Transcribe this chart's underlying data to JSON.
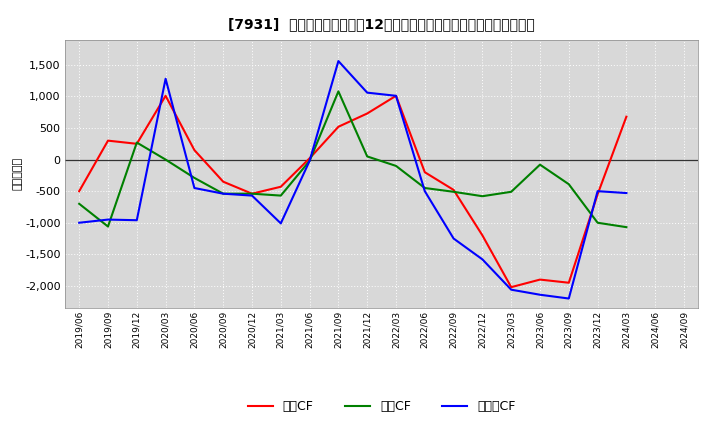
{
  "title": "[7931]  キャッシュフローの12か月移動合計の対前年同期増減額の推移",
  "ylabel": "（百万円）",
  "background_color": "#ffffff",
  "plot_bg_color": "#d8d8d8",
  "grid_color": "#ffffff",
  "ylim": [
    -2350,
    1900
  ],
  "yticks": [
    -2000,
    -1500,
    -1000,
    -500,
    0,
    500,
    1000,
    1500
  ],
  "x_labels": [
    "2019/06",
    "2019/09",
    "2019/12",
    "2020/03",
    "2020/06",
    "2020/09",
    "2020/12",
    "2021/03",
    "2021/06",
    "2021/09",
    "2021/12",
    "2022/03",
    "2022/06",
    "2022/09",
    "2022/12",
    "2023/03",
    "2023/06",
    "2023/09",
    "2023/12",
    "2024/03",
    "2024/06",
    "2024/09"
  ],
  "operating_cf": [
    -500,
    300,
    250,
    1010,
    150,
    -350,
    -540,
    -430,
    20,
    520,
    730,
    1010,
    -200,
    -480,
    -1200,
    -2020,
    -1900,
    -1950,
    -550,
    680,
    null,
    null
  ],
  "investing_cf": [
    -700,
    -1060,
    270,
    0,
    -290,
    -540,
    -540,
    -570,
    -20,
    1080,
    50,
    -100,
    -450,
    -510,
    -580,
    -510,
    -80,
    -390,
    -1000,
    -1070,
    null,
    null
  ],
  "free_cf": [
    -1000,
    -950,
    -960,
    1280,
    -450,
    -540,
    -570,
    -1010,
    -20,
    1560,
    1060,
    1010,
    -500,
    -1250,
    -1580,
    -2060,
    -2140,
    -2200,
    -500,
    -530,
    null,
    null
  ],
  "colors": {
    "operating": "#ff0000",
    "investing": "#008000",
    "free": "#0000ff"
  },
  "legend_labels": [
    "営業CF",
    "投賄CF",
    "フリーCF"
  ]
}
